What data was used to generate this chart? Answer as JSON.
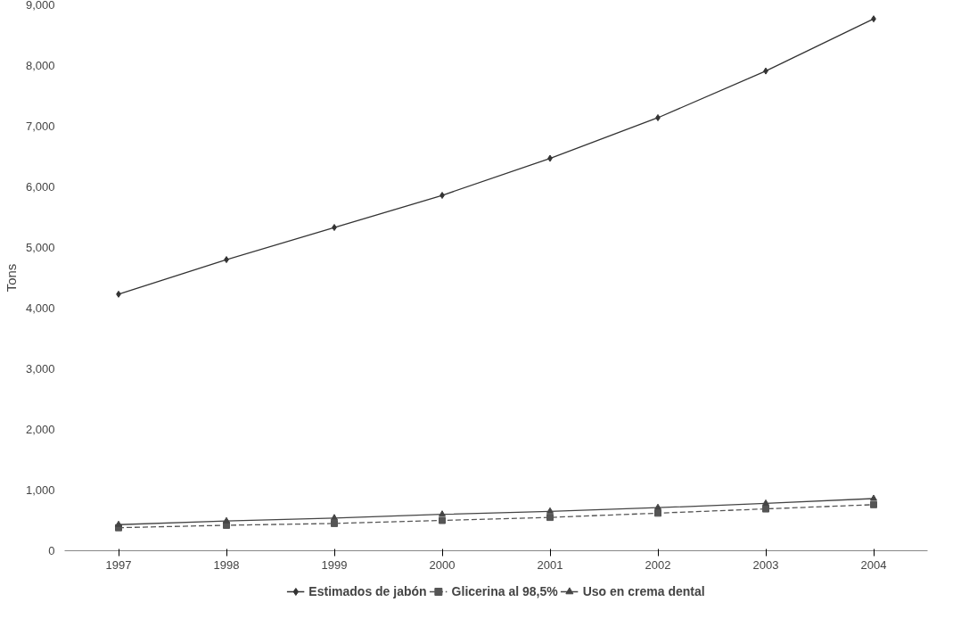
{
  "chart_data": {
    "type": "line",
    "ylabel": "Tons",
    "categories": [
      "1997",
      "1998",
      "1999",
      "2000",
      "2001",
      "2002",
      "2003",
      "2004"
    ],
    "series": [
      {
        "name": "Estimados de jabón",
        "color": "#333333",
        "marker": "diamond",
        "line_style": "solid",
        "values": [
          4230,
          4800,
          5330,
          5860,
          6470,
          7140,
          7910,
          8770
        ]
      },
      {
        "name": "Glicerina al 98,5%",
        "color": "#555555",
        "marker": "square",
        "line_style": "dashed",
        "values": [
          380,
          420,
          450,
          500,
          550,
          620,
          690,
          760
        ]
      },
      {
        "name": "Uso en crema dental",
        "color": "#444444",
        "marker": "triangle",
        "line_style": "solid",
        "values": [
          430,
          490,
          540,
          600,
          650,
          710,
          780,
          860
        ]
      }
    ],
    "ylim": [
      0,
      9000
    ],
    "yticks": [
      {
        "value": 0,
        "label": "0"
      },
      {
        "value": 1000,
        "label": "1,000"
      },
      {
        "value": 2000,
        "label": "2,000"
      },
      {
        "value": 3000,
        "label": "3,000"
      },
      {
        "value": 4000,
        "label": "4,000"
      },
      {
        "value": 5000,
        "label": "5,000"
      },
      {
        "value": 6000,
        "label": "6,000"
      },
      {
        "value": 7000,
        "label": "7,000"
      },
      {
        "value": 8000,
        "label": "8,000"
      },
      {
        "value": 9000,
        "label": "9,000"
      }
    ],
    "grid": false,
    "legend": "bottom"
  }
}
